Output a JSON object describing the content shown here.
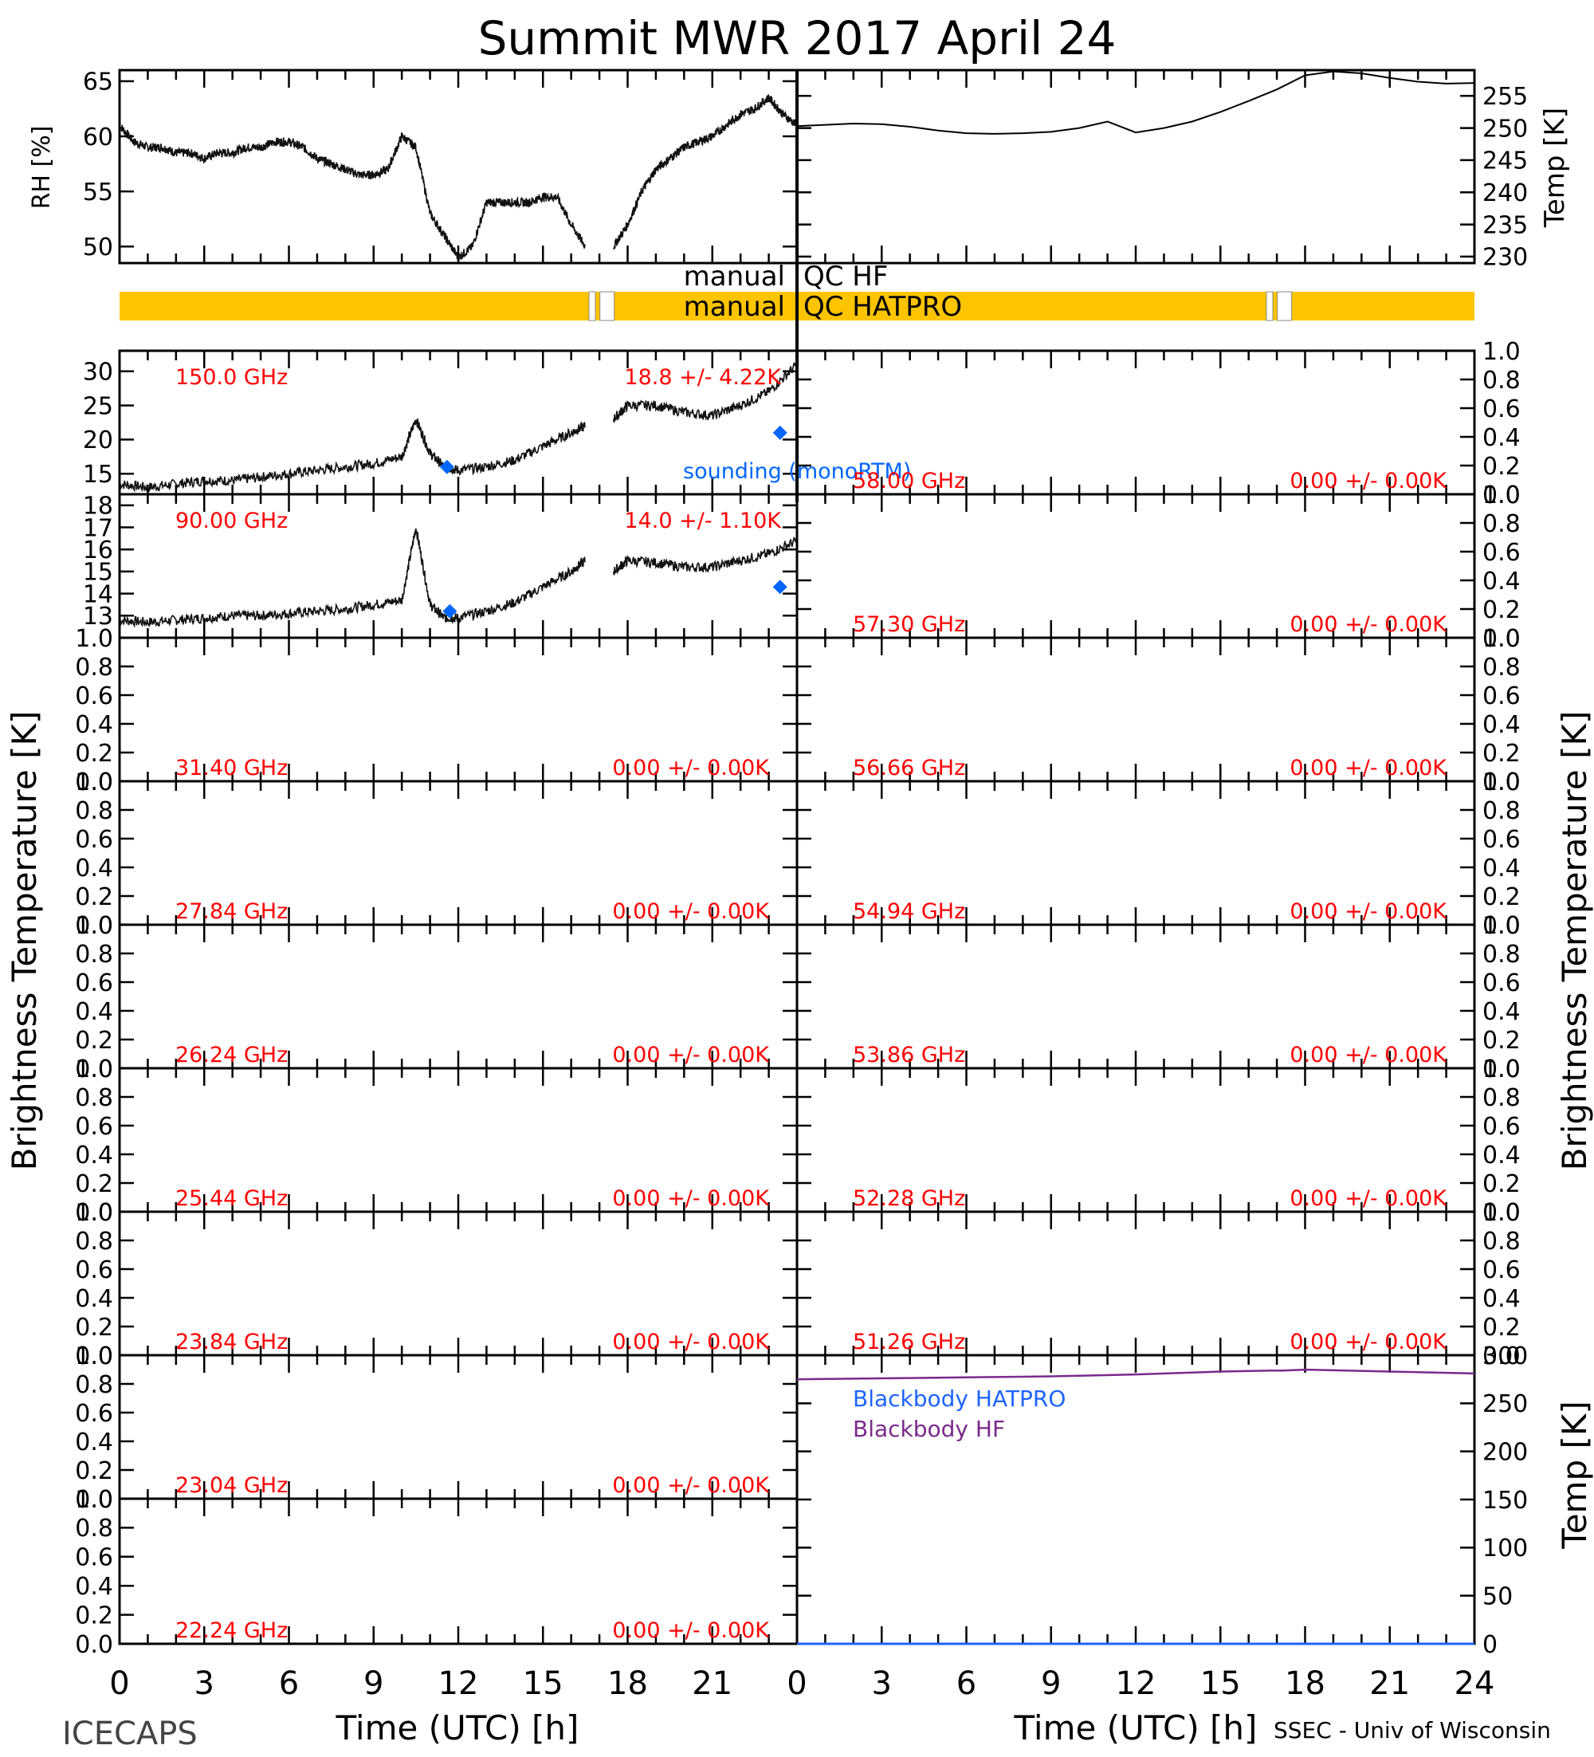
{
  "title": "Summit MWR 2017 April 24",
  "footer": {
    "left": "ICECAPS",
    "right": "SSEC - Univ of Wisconsin",
    "xlabel_left": "Time (UTC) [h]",
    "xlabel_right": "Time (UTC) [h]"
  },
  "axis_labels": {
    "bt_left": "Brightness Temperature [K]",
    "bt_right": "Brightness Temperature [K]",
    "rh": "RH [%]",
    "temp_top": "Temp [K]",
    "temp_bb": "Temp [K]"
  },
  "qc": {
    "hf_label": "manual QC HF",
    "hatpro_label": "manual QC HATPRO",
    "bar_color": "#FFC400",
    "gaps_left_hours": [
      16.8,
      17.3
    ],
    "gaps_right_hours": [
      16.8,
      17.3
    ]
  },
  "legend": {
    "sounding": "sounding (monoRTM)",
    "bb_hatpro": "Blackbody HATPRO",
    "bb_hf": "Blackbody HF"
  },
  "colors": {
    "label_red": "#FF0000",
    "sounding_blue": "#0066FF",
    "bb_hatpro": "#1E64FF",
    "bb_hf": "#7A2A8C"
  },
  "chart_data": [
    {
      "id": "rh",
      "type": "line",
      "ylabel": "RH [%]",
      "xlim": [
        0,
        24
      ],
      "ylim": [
        48.5,
        66
      ],
      "yticks": [
        "50",
        "55",
        "60",
        "65"
      ],
      "series": [
        {
          "x": [
            0,
            0.5,
            1,
            1.5,
            2,
            2.5,
            3,
            3.5,
            4,
            4.5,
            5,
            5.5,
            6,
            6.5,
            7,
            7.5,
            8,
            8.5,
            9,
            9.5,
            10,
            10.5,
            11,
            11.5,
            12,
            12.5,
            13,
            13.5,
            14,
            14.5,
            15,
            15.5,
            16,
            16.5,
            17,
            17.2,
            17.5,
            18,
            18.5,
            19,
            19.5,
            20,
            20.5,
            21,
            21.5,
            22,
            22.5,
            23,
            23.5,
            24
          ],
          "y": [
            61,
            59.5,
            59,
            59,
            58.5,
            58.5,
            58,
            58.5,
            58.5,
            59,
            59,
            59.5,
            59.5,
            59,
            58,
            57.5,
            57,
            56.5,
            56.5,
            57,
            60,
            59,
            53,
            51,
            49,
            50,
            54,
            54,
            54,
            54,
            54.5,
            54.5,
            52,
            50,
            null,
            null,
            50,
            52,
            55,
            57,
            58,
            59,
            59.5,
            60,
            61,
            62,
            62.5,
            63.5,
            62,
            61
          ]
        }
      ]
    },
    {
      "id": "temp",
      "type": "line",
      "ylabel": "Temp [K]",
      "xlim": [
        0,
        24
      ],
      "ylim": [
        229,
        259
      ],
      "yticks": [
        "230",
        "235",
        "240",
        "245",
        "250",
        "255"
      ],
      "series": [
        {
          "x": [
            0,
            1,
            2,
            3,
            4,
            5,
            6,
            7,
            8,
            9,
            10,
            11,
            12,
            13,
            14,
            15,
            16,
            17,
            18,
            19,
            20,
            21,
            22,
            23,
            24
          ],
          "y": [
            250.3,
            250.5,
            250.7,
            250.6,
            250.2,
            249.6,
            249.2,
            249.1,
            249.2,
            249.4,
            250,
            251,
            249.3,
            250,
            251,
            252.5,
            254.2,
            256,
            258.2,
            258.8,
            258.5,
            257.8,
            257.2,
            256.9,
            257
          ]
        }
      ]
    },
    {
      "id": "150.0",
      "type": "line",
      "freq_label": "150.0 GHz",
      "stat_label": "18.8 +/-  4.22K",
      "xlim": [
        0,
        24
      ],
      "ylim": [
        12,
        33
      ],
      "yticks": [
        "15",
        "20",
        "25",
        "30"
      ],
      "series": [
        {
          "x": [
            0,
            1,
            2,
            3,
            4,
            5,
            6,
            7,
            8,
            9,
            10,
            10.5,
            11,
            11.5,
            12,
            13,
            14,
            15,
            16,
            16.5,
            17,
            17.5,
            18,
            19,
            20,
            21,
            22,
            23,
            24
          ],
          "y": [
            13.5,
            13,
            13.5,
            14,
            14,
            14.5,
            15,
            15.5,
            16,
            16.5,
            17.5,
            23,
            18,
            16,
            15.5,
            16,
            17,
            19,
            21,
            22,
            null,
            23,
            25,
            25,
            24,
            23.5,
            25,
            27,
            31
          ]
        }
      ],
      "sounding_points": [
        {
          "x": 11.6,
          "y": 16
        },
        {
          "x": 23.4,
          "y": 21
        }
      ]
    },
    {
      "id": "90.00",
      "type": "line",
      "freq_label": "90.00 GHz",
      "stat_label": "14.0 +/-  1.10K",
      "xlim": [
        0,
        24
      ],
      "ylim": [
        12,
        18.5
      ],
      "yticks": [
        "13",
        "14",
        "15",
        "16",
        "17",
        "18"
      ],
      "series": [
        {
          "x": [
            0,
            1,
            2,
            3,
            4,
            5,
            6,
            7,
            8,
            9,
            10,
            10.5,
            11,
            11.5,
            12,
            13,
            14,
            15,
            16,
            16.5,
            17,
            17.5,
            18,
            19,
            20,
            21,
            22,
            23,
            24
          ],
          "y": [
            12.8,
            12.7,
            12.8,
            12.9,
            13,
            13,
            13.1,
            13.2,
            13.3,
            13.5,
            13.7,
            17,
            13.5,
            12.9,
            12.9,
            13.2,
            13.6,
            14.3,
            15,
            15.5,
            null,
            15,
            15.5,
            15.4,
            15.2,
            15.2,
            15.5,
            15.8,
            16.4
          ]
        }
      ],
      "sounding_points": [
        {
          "x": 11.7,
          "y": 13.2
        },
        {
          "x": 23.4,
          "y": 14.3
        }
      ]
    }
  ],
  "empty_left_channels": [
    {
      "freq_label": "31.40 GHz",
      "stat_label": "0.00 +/-  0.00K"
    },
    {
      "freq_label": "27.84 GHz",
      "stat_label": "0.00 +/-  0.00K"
    },
    {
      "freq_label": "26.24 GHz",
      "stat_label": "0.00 +/-  0.00K"
    },
    {
      "freq_label": "25.44 GHz",
      "stat_label": "0.00 +/-  0.00K"
    },
    {
      "freq_label": "23.84 GHz",
      "stat_label": "0.00 +/-  0.00K"
    },
    {
      "freq_label": "23.04 GHz",
      "stat_label": "0.00 +/-  0.00K"
    },
    {
      "freq_label": "22.24 GHz",
      "stat_label": "0.00 +/-  0.00K"
    }
  ],
  "empty_right_channels": [
    {
      "freq_label": "58.00 GHz",
      "stat_label": "0.00 +/-  0.00K"
    },
    {
      "freq_label": "57.30 GHz",
      "stat_label": "0.00 +/-  0.00K"
    },
    {
      "freq_label": "56.66 GHz",
      "stat_label": "0.00 +/-  0.00K"
    },
    {
      "freq_label": "54.94 GHz",
      "stat_label": "0.00 +/-  0.00K"
    },
    {
      "freq_label": "53.86 GHz",
      "stat_label": "0.00 +/-  0.00K"
    },
    {
      "freq_label": "52.28 GHz",
      "stat_label": "0.00 +/-  0.00K"
    },
    {
      "freq_label": "51.26 GHz",
      "stat_label": "0.00 +/-  0.00K"
    }
  ],
  "empty_yticks": [
    "0.0",
    "0.2",
    "0.4",
    "0.6",
    "0.8",
    "1.0"
  ],
  "blackbody": {
    "type": "line",
    "xlim": [
      0,
      24
    ],
    "ylim": [
      0,
      300
    ],
    "yticks": [
      "0",
      "50",
      "100",
      "150",
      "200",
      "250",
      "300"
    ],
    "hf_series": {
      "x": [
        0,
        3,
        6,
        9,
        12,
        15,
        16.8,
        17.2,
        18,
        21,
        24
      ],
      "y": [
        275,
        276,
        277,
        278,
        280,
        283,
        284,
        284,
        285,
        283,
        281
      ]
    },
    "hatpro_series": {
      "x": [
        0,
        24
      ],
      "y": [
        0,
        0
      ]
    }
  },
  "xticks": [
    "0",
    "3",
    "6",
    "9",
    "12",
    "15",
    "18",
    "21",
    "24"
  ]
}
